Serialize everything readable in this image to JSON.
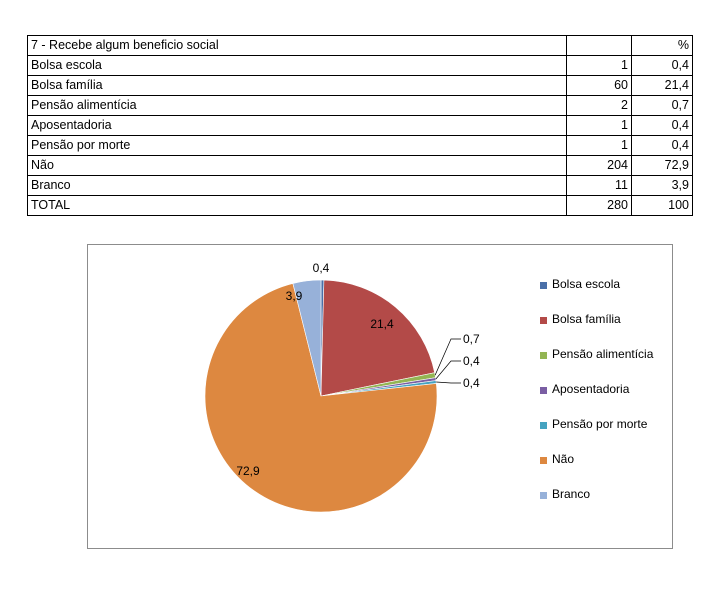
{
  "table": {
    "title": "7 - Recebe algum beneficio social",
    "count_header": "",
    "pct_header": "%",
    "rows": [
      {
        "label": "Bolsa escola",
        "count": "1",
        "pct": "0,4"
      },
      {
        "label": "Bolsa família",
        "count": "60",
        "pct": "21,4"
      },
      {
        "label": "Pensão alimentícia",
        "count": "2",
        "pct": "0,7"
      },
      {
        "label": "Aposentadoria",
        "count": "1",
        "pct": "0,4"
      },
      {
        "label": "Pensão por morte",
        "count": "1",
        "pct": "0,4"
      },
      {
        "label": "Não",
        "count": "204",
        "pct": "72,9"
      },
      {
        "label": "Branco",
        "count": "11",
        "pct": "3,9"
      }
    ],
    "total_label": "TOTAL",
    "total_count": "280",
    "total_pct": "100"
  },
  "chart_data": {
    "type": "pie",
    "title": "",
    "categories": [
      "Bolsa escola",
      "Bolsa família",
      "Pensão alimentícia",
      "Aposentadoria",
      "Pensão por morte",
      "Não",
      "Branco"
    ],
    "values": [
      0.4,
      21.4,
      0.7,
      0.4,
      0.4,
      72.9,
      3.9
    ],
    "data_labels": [
      "0,4",
      "21,4",
      "0,7",
      "0,4",
      "0,4",
      "72,9",
      "3,9"
    ],
    "colors": [
      "#4a6fa8",
      "#b34a48",
      "#93b553",
      "#7a5ea3",
      "#45a3c0",
      "#dd8840",
      "#97b1d9"
    ],
    "legend_position": "right",
    "start": "12 o'clock, clockwise"
  }
}
